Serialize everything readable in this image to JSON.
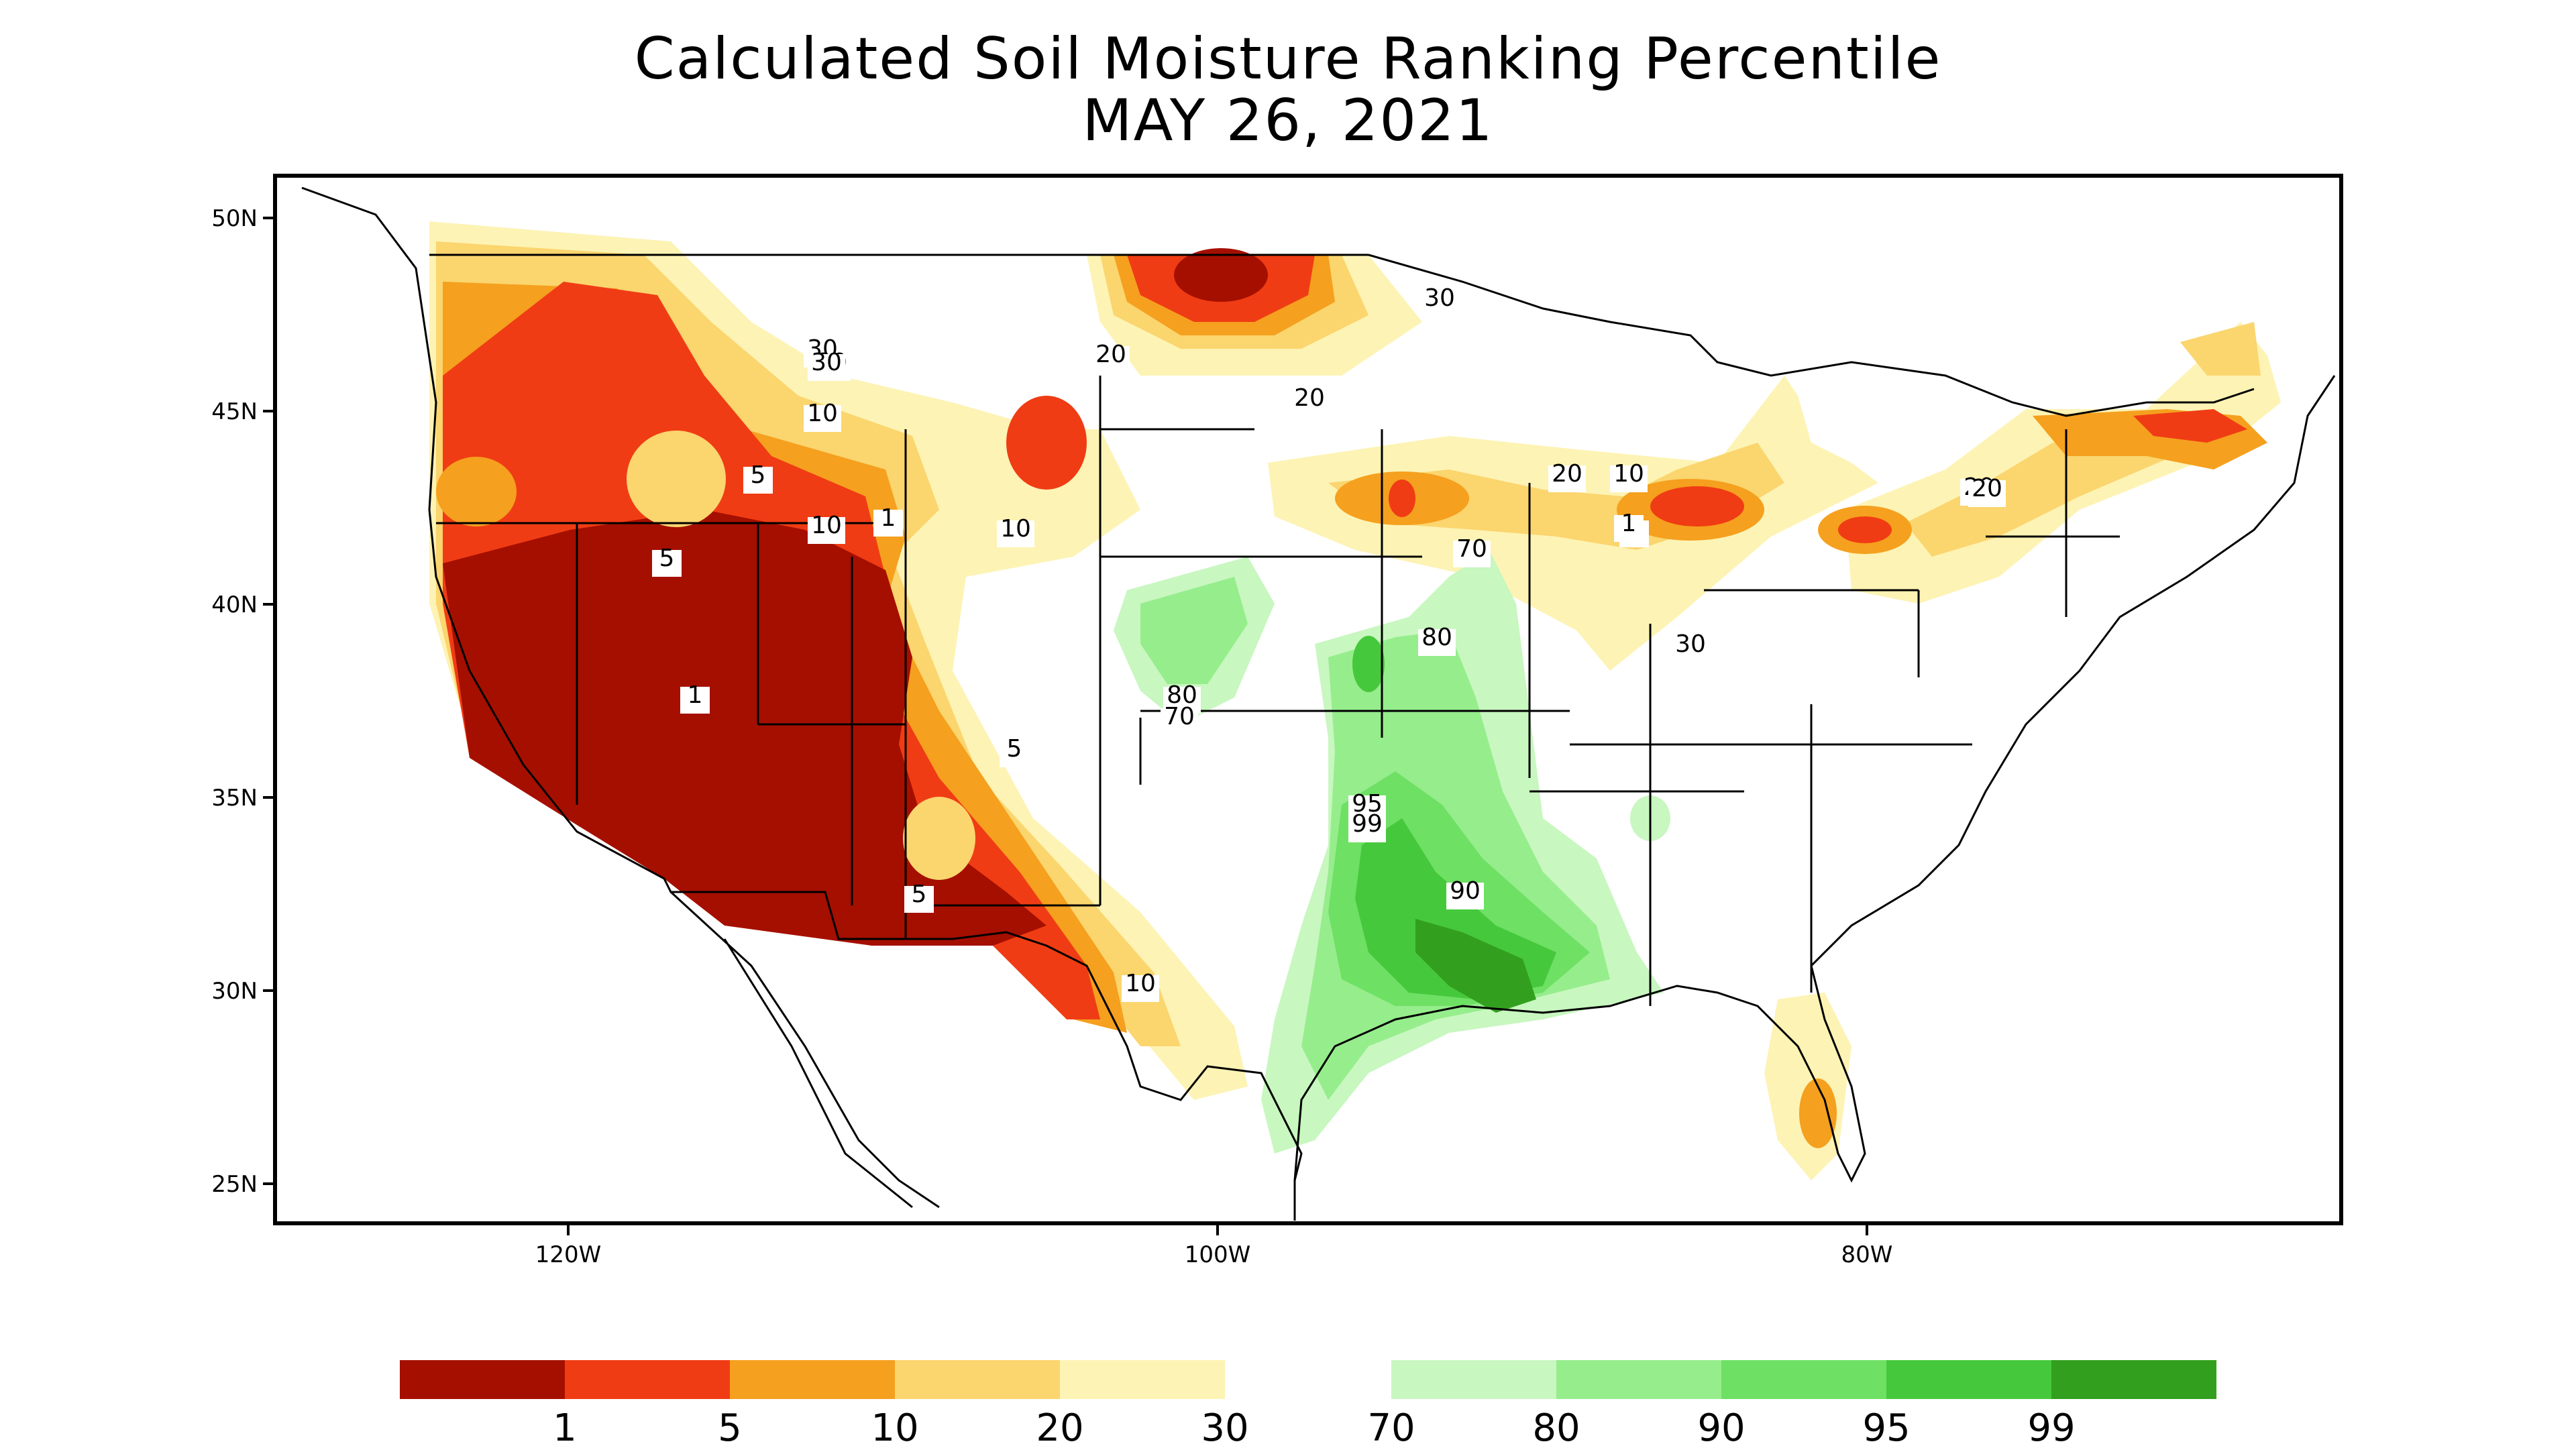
{
  "title": "Calculated Soil Moisture Ranking Percentile",
  "subtitle": "MAY 26, 2021",
  "axes": {
    "lat_labels": [
      "50N",
      "45N",
      "40N",
      "35N",
      "30N",
      "25N"
    ],
    "lon_labels": [
      "120W",
      "100W",
      "80W"
    ]
  },
  "contour_labels": [
    "30",
    "20",
    "10",
    "5",
    "1",
    "5",
    "10",
    "20",
    "30",
    "30",
    "20",
    "10",
    "5",
    "10",
    "20",
    "30",
    "1",
    "5",
    "10",
    "70",
    "80",
    "80",
    "70",
    "90",
    "95",
    "99",
    "90",
    "30",
    "5",
    "1",
    "20"
  ],
  "legend": {
    "dry": {
      "labels": [
        "1",
        "5",
        "10",
        "20",
        "30"
      ],
      "colors": [
        "#a50f00",
        "#f03c14",
        "#f5a01e",
        "#fbd56e",
        "#fdf3b4"
      ]
    },
    "wet": {
      "labels": [
        "70",
        "80",
        "90",
        "95",
        "99"
      ],
      "colors": [
        "#c8f7c0",
        "#96ed8c",
        "#6ee064",
        "#46c83c",
        "#32a01e"
      ]
    }
  },
  "colors": {
    "frame": "#000000",
    "state_lines": "#000000",
    "background": "#ffffff"
  }
}
